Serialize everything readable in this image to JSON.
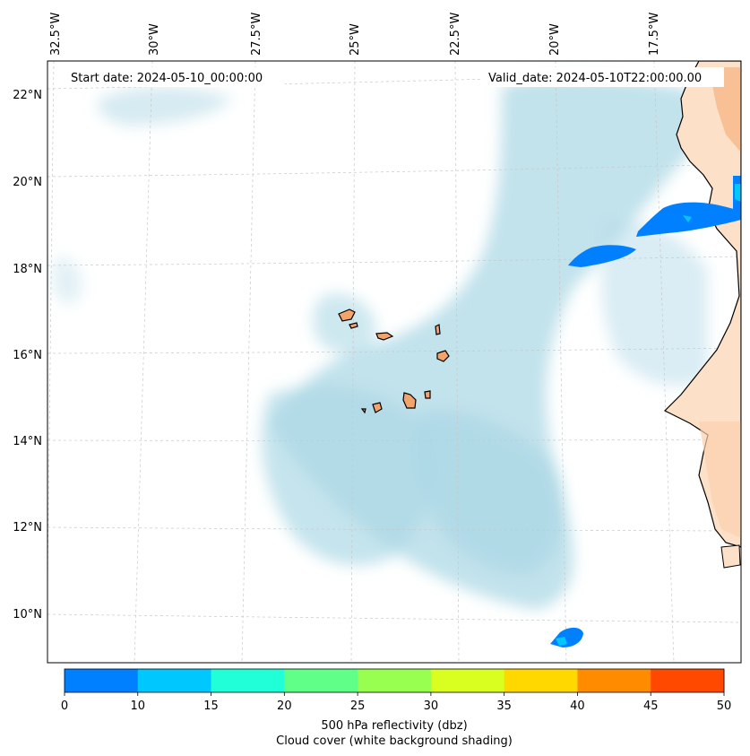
{
  "map": {
    "start_date_label": "Start date: 2024-05-10_00:00:00",
    "valid_date_label": "Valid_date: 2024-05-10T22:00:00.00",
    "lon_labels": [
      "32.5°W",
      "30°W",
      "27.5°W",
      "25°W",
      "22.5°W",
      "20°W",
      "17.5°W"
    ],
    "lat_labels": [
      "22°N",
      "20°N",
      "18°N",
      "16°N",
      "14°N",
      "12°N",
      "10°N"
    ],
    "colors": {
      "land": "#f2a46a",
      "land_light": "#fde0c8",
      "cloud": "#add8e6",
      "ocean": "#ffffff",
      "coast": "#000000"
    }
  },
  "colorbar": {
    "ticks": [
      "0",
      "10",
      "15",
      "20",
      "25",
      "30",
      "35",
      "40",
      "45",
      "50"
    ],
    "colors": [
      "#0080ff",
      "#00c8ff",
      "#20ffd8",
      "#60ff88",
      "#98ff50",
      "#d8ff20",
      "#ffd800",
      "#ff8c00",
      "#ff4800"
    ],
    "label_line1": "500 hPa reflectivity (dbz)",
    "label_line2": "Cloud cover (white background shading)"
  }
}
